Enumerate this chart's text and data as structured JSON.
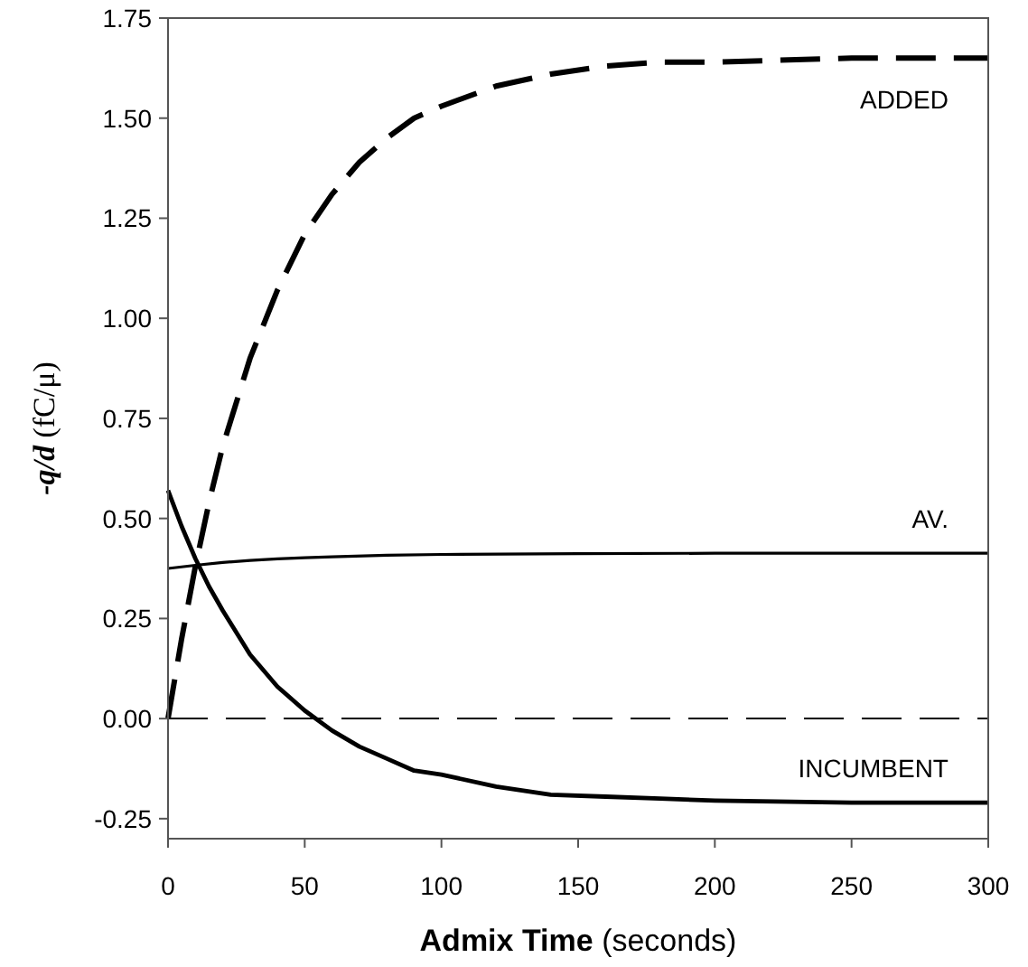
{
  "chart_data": {
    "type": "line",
    "xlabel": "Admix Time (seconds)",
    "ylabel": "-q/d (fC/μ)",
    "xlim": [
      0,
      300
    ],
    "xticks": [
      0,
      50,
      100,
      150,
      200,
      250,
      300
    ],
    "ylim": [
      -0.3,
      1.75
    ],
    "yticks": [
      {
        "value": 1.75,
        "label": "1.75"
      },
      {
        "value": 1.5,
        "label": "1.50"
      },
      {
        "value": 1.25,
        "label": "1.25"
      },
      {
        "value": 1,
        "label": "1.00"
      },
      {
        "value": 0.75,
        "label": "0.75"
      },
      {
        "value": 0.5,
        "label": "0.50"
      },
      {
        "value": 0.25,
        "label": "0.25"
      },
      {
        "value": 0,
        "label": "0.00"
      },
      {
        "value": -0.25,
        "label": "-0.25"
      }
    ],
    "grid": false,
    "marker": "none",
    "ref_lines": [
      {
        "axis": "y",
        "value": 0,
        "line_style": "dashed",
        "color": "#000000"
      }
    ],
    "series": [
      {
        "name": "ADDED",
        "color": "#000000",
        "line_style": "dashed",
        "x": [
          0,
          5,
          10,
          15,
          20,
          30,
          40,
          50,
          60,
          70,
          80,
          90,
          100,
          120,
          140,
          160,
          180,
          200,
          250,
          300
        ],
        "values": [
          0,
          0.2,
          0.38,
          0.54,
          0.68,
          0.9,
          1.07,
          1.21,
          1.31,
          1.39,
          1.45,
          1.5,
          1.53,
          1.58,
          1.61,
          1.63,
          1.64,
          1.64,
          1.65,
          1.65
        ]
      },
      {
        "name": "AV.",
        "color": "#000000",
        "line_style": "solid",
        "x": [
          0,
          10,
          20,
          30,
          40,
          50,
          60,
          80,
          100,
          150,
          200,
          300
        ],
        "values": [
          0.375,
          0.383,
          0.39,
          0.395,
          0.399,
          0.402,
          0.404,
          0.408,
          0.41,
          0.412,
          0.413,
          0.413
        ]
      },
      {
        "name": "INCUMBENT",
        "color": "#000000",
        "line_style": "solid",
        "x": [
          0,
          5,
          10,
          15,
          20,
          30,
          40,
          50,
          60,
          70,
          80,
          90,
          100,
          120,
          140,
          160,
          180,
          200,
          250,
          300
        ],
        "values": [
          0.57,
          0.48,
          0.4,
          0.33,
          0.27,
          0.16,
          0.08,
          0.02,
          -0.03,
          -0.07,
          -0.1,
          -0.13,
          -0.14,
          -0.17,
          -0.19,
          -0.195,
          -0.2,
          -0.205,
          -0.21,
          -0.21
        ]
      }
    ]
  }
}
